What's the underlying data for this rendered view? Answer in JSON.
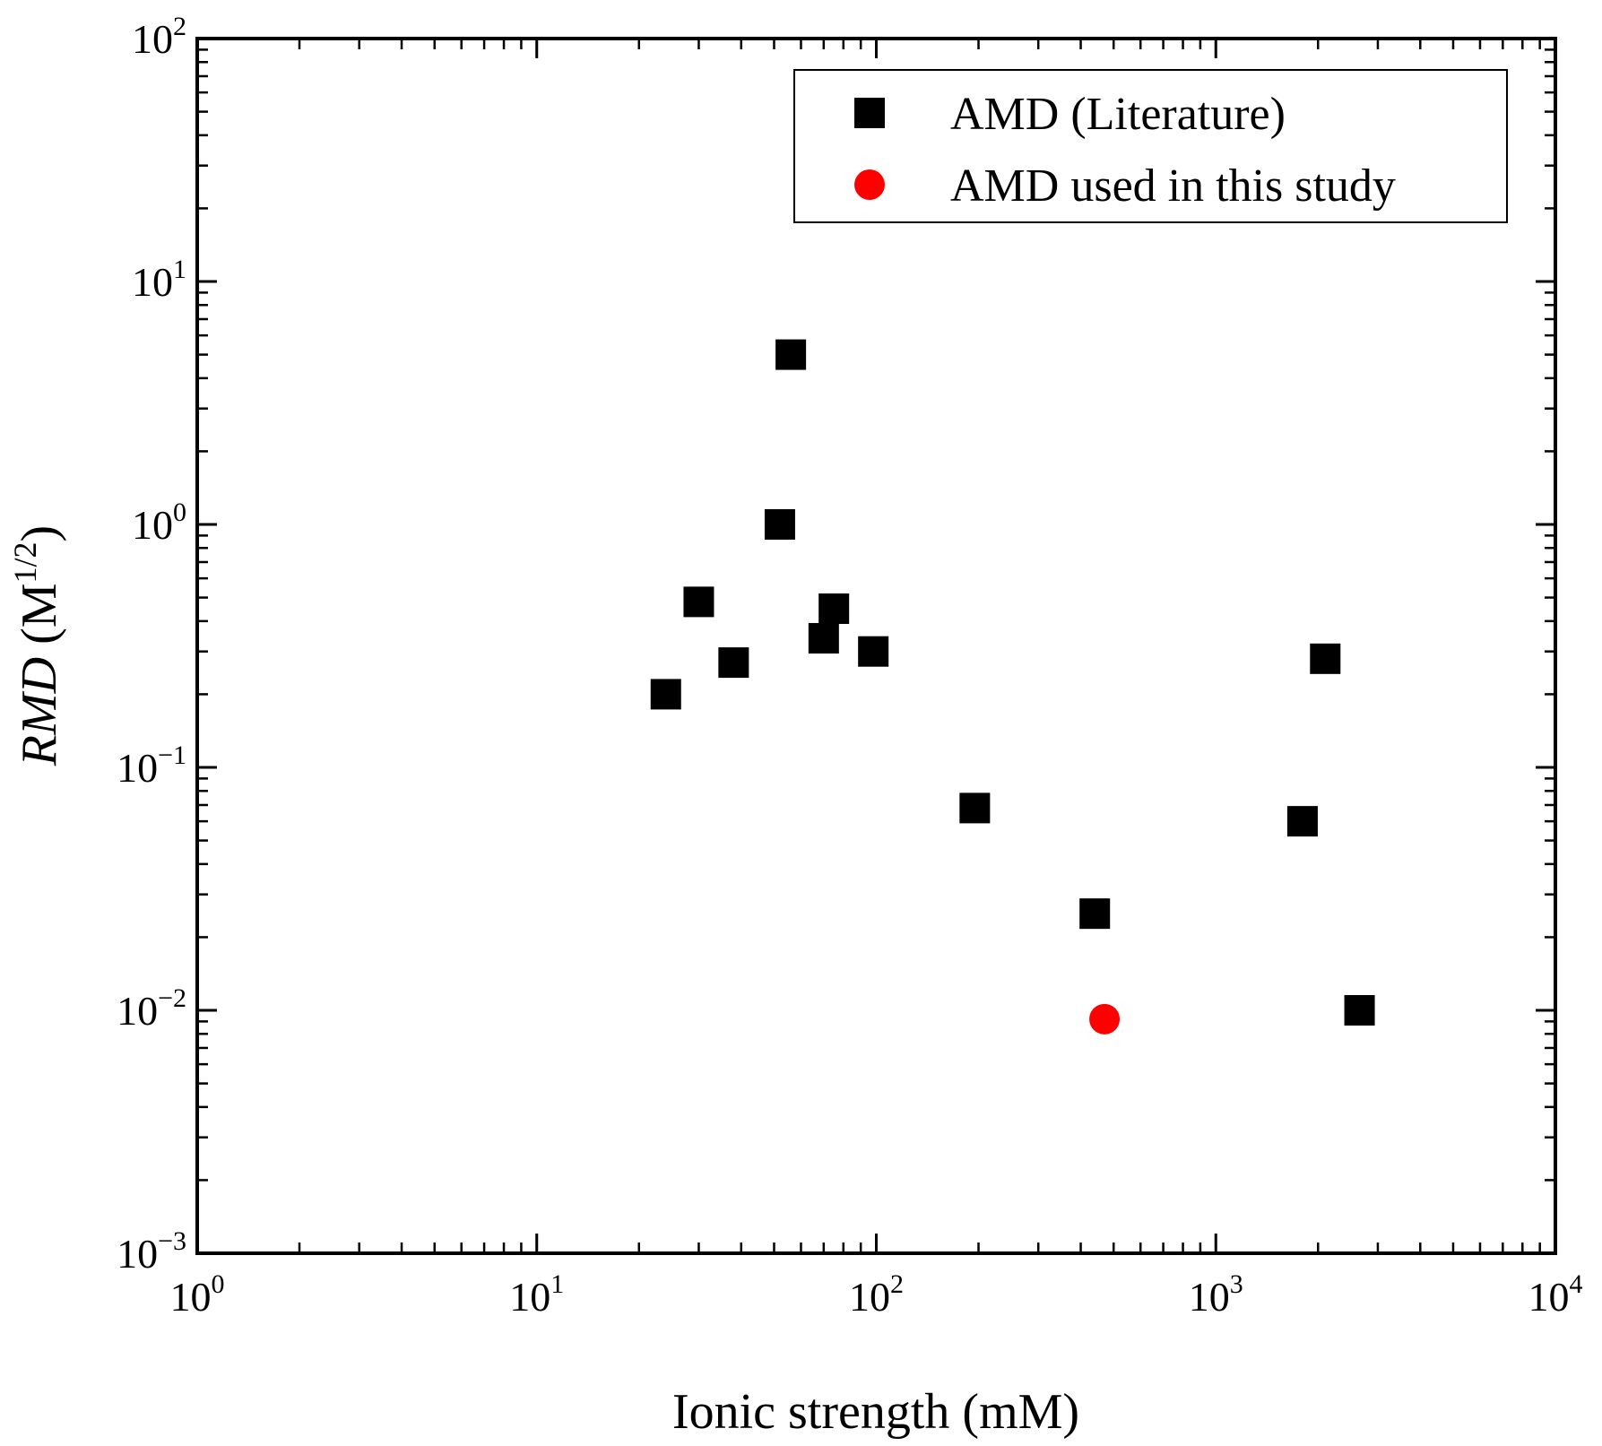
{
  "chart_data": {
    "type": "scatter",
    "xscale": "log",
    "yscale": "log",
    "xlim": [
      1,
      10000
    ],
    "ylim": [
      0.001,
      100
    ],
    "xlabel": "Ionic strength (mM)",
    "ylabel": {
      "italic": "RMD",
      "rest": " (M",
      "sup": "1/2",
      "close": ")"
    },
    "xticks": [
      {
        "base": "10",
        "exp": "0",
        "value": 1
      },
      {
        "base": "10",
        "exp": "1",
        "value": 10
      },
      {
        "base": "10",
        "exp": "2",
        "value": 100
      },
      {
        "base": "10",
        "exp": "3",
        "value": 1000
      },
      {
        "base": "10",
        "exp": "4",
        "value": 10000
      }
    ],
    "yticks": [
      {
        "base": "10",
        "exp": "2",
        "value": 100
      },
      {
        "base": "10",
        "exp": "1",
        "value": 10
      },
      {
        "base": "10",
        "exp": "0",
        "value": 1
      },
      {
        "base": "10",
        "exp": "−1",
        "value": 0.1
      },
      {
        "base": "10",
        "exp": "−2",
        "value": 0.01
      },
      {
        "base": "10",
        "exp": "−3",
        "value": 0.001
      }
    ],
    "grid": false,
    "legend_position": "top-right",
    "series": [
      {
        "name": "AMD (Literature)",
        "marker": "square",
        "color": "#000000",
        "points": [
          {
            "x": 24,
            "y": 0.2
          },
          {
            "x": 30,
            "y": 0.48
          },
          {
            "x": 38,
            "y": 0.27
          },
          {
            "x": 52,
            "y": 1.0
          },
          {
            "x": 56,
            "y": 5.0
          },
          {
            "x": 70,
            "y": 0.34
          },
          {
            "x": 75,
            "y": 0.45
          },
          {
            "x": 98,
            "y": 0.3
          },
          {
            "x": 195,
            "y": 0.068
          },
          {
            "x": 440,
            "y": 0.025
          },
          {
            "x": 1800,
            "y": 0.06
          },
          {
            "x": 2100,
            "y": 0.28
          },
          {
            "x": 2650,
            "y": 0.01
          }
        ]
      },
      {
        "name": "AMD used in this study",
        "marker": "circle",
        "color": "#ff0000",
        "points": [
          {
            "x": 470,
            "y": 0.0092
          }
        ]
      }
    ]
  }
}
